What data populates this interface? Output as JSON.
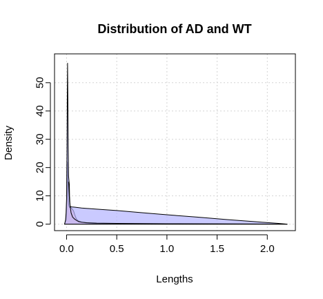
{
  "chart_data": {
    "type": "area",
    "title": "Distribution of AD and WT",
    "xlabel": "Lengths",
    "ylabel": "Density",
    "xlim": [
      -0.12,
      2.28
    ],
    "ylim": [
      -2.3,
      60.2
    ],
    "x_ticks": [
      0.0,
      0.5,
      1.0,
      1.5,
      2.0
    ],
    "x_tick_labels": [
      "0.0",
      "0.5",
      "1.0",
      "1.5",
      "2.0"
    ],
    "y_ticks": [
      0,
      10,
      20,
      30,
      40,
      50
    ],
    "y_tick_labels": [
      "0",
      "10",
      "20",
      "30",
      "40",
      "50"
    ],
    "grid": true,
    "series": [
      {
        "color": "#ffb3b3",
        "points": [
          [
            -0.02,
            0.0
          ],
          [
            -0.005,
            1.5
          ],
          [
            0.0,
            5.0
          ],
          [
            0.003,
            12.0
          ],
          [
            0.006,
            20.0
          ],
          [
            0.008,
            22.0
          ],
          [
            0.01,
            18.0
          ],
          [
            0.012,
            13.0
          ],
          [
            0.015,
            9.0
          ],
          [
            0.02,
            7.0
          ],
          [
            0.025,
            6.2
          ],
          [
            0.03,
            6.0
          ],
          [
            0.04,
            5.8
          ],
          [
            0.05,
            5.6
          ],
          [
            0.06,
            5.2
          ],
          [
            0.07,
            4.6
          ],
          [
            0.08,
            3.5
          ],
          [
            0.09,
            2.5
          ],
          [
            0.1,
            1.7
          ],
          [
            0.12,
            1.1
          ],
          [
            0.15,
            0.7
          ],
          [
            0.2,
            0.4
          ],
          [
            0.3,
            0.2
          ],
          [
            0.5,
            0.08
          ],
          [
            1.0,
            0.03
          ],
          [
            1.5,
            0.02
          ],
          [
            2.0,
            0.01
          ],
          [
            2.2,
            0.0
          ]
        ]
      },
      {
        "color": "#b3b3ff",
        "points": [
          [
            -0.02,
            0.0
          ],
          [
            -0.01,
            1.5
          ],
          [
            -0.005,
            4.0
          ],
          [
            0.0,
            9.0
          ],
          [
            0.004,
            25.0
          ],
          [
            0.007,
            45.0
          ],
          [
            0.01,
            57.0
          ],
          [
            0.013,
            45.0
          ],
          [
            0.016,
            28.0
          ],
          [
            0.02,
            17.0
          ],
          [
            0.025,
            15.0
          ],
          [
            0.028,
            14.0
          ],
          [
            0.03,
            10.0
          ],
          [
            0.035,
            6.0
          ],
          [
            0.04,
            6.2
          ],
          [
            0.05,
            6.1
          ],
          [
            0.08,
            6.0
          ],
          [
            0.15,
            5.7
          ],
          [
            0.3,
            5.3
          ],
          [
            0.5,
            4.8
          ],
          [
            0.8,
            3.9
          ],
          [
            1.0,
            3.3
          ],
          [
            1.3,
            2.5
          ],
          [
            1.6,
            1.6
          ],
          [
            1.9,
            0.8
          ],
          [
            2.1,
            0.3
          ],
          [
            2.2,
            0.0
          ]
        ]
      }
    ],
    "density_curve": [
      [
        0.02,
        15.0
      ],
      [
        0.03,
        8.0
      ],
      [
        0.045,
        4.0
      ],
      [
        0.06,
        2.5
      ],
      [
        0.08,
        1.8
      ],
      [
        0.1,
        1.3
      ],
      [
        0.12,
        0.9
      ],
      [
        0.15,
        0.7
      ],
      [
        0.2,
        0.5
      ],
      [
        0.3,
        0.35
      ],
      [
        0.5,
        0.25
      ],
      [
        1.0,
        0.15
      ],
      [
        1.5,
        0.1
      ],
      [
        2.0,
        0.05
      ],
      [
        2.2,
        0.0
      ]
    ]
  }
}
